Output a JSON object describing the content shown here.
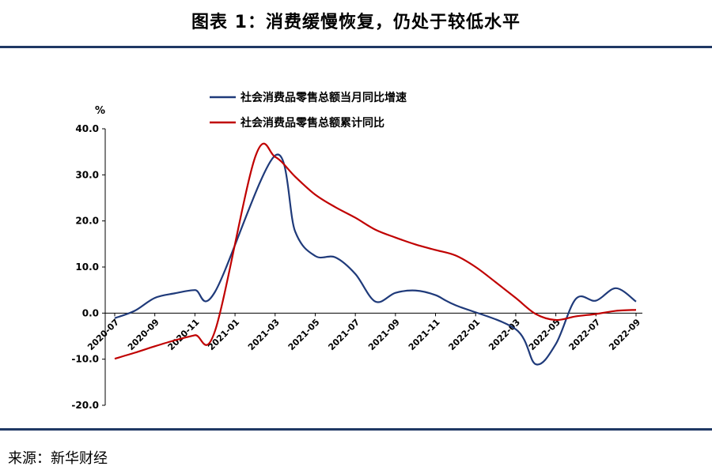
{
  "title": "图表 1：消费缓慢恢复，仍处于较低水平",
  "source": "来源：新华财经",
  "chart_data": {
    "type": "line",
    "unit": "%",
    "ylim": [
      -20,
      40
    ],
    "yticks": [
      -20,
      -10,
      0,
      10,
      20,
      30,
      40
    ],
    "ytick_labels": [
      "-20.0",
      "-10.0",
      "0.0",
      "10.0",
      "20.0",
      "30.0",
      "40.0"
    ],
    "x": [
      "2020-07",
      "2020-08",
      "2020-09",
      "2020-10",
      "2020-11",
      "2020-12",
      "2021-01",
      "2021-02",
      "2021-03",
      "2021-04",
      "2021-05",
      "2021-06",
      "2021-07",
      "2021-08",
      "2021-09",
      "2021-10",
      "2021-11",
      "2021-12",
      "2022-01",
      "2022-02",
      "2022-03",
      "2022-04",
      "2022-05",
      "2022-06",
      "2022-07",
      "2022-08",
      "2022-09"
    ],
    "xtick_labels": [
      "2020-07",
      "2020-09",
      "2020-11",
      "2021-01",
      "2021-03",
      "2021-05",
      "2021-07",
      "2021-09",
      "2021-11",
      "2022-01",
      "2022-03",
      "2022-05",
      "2022-07",
      "2022-09"
    ],
    "legend_position": "top-center",
    "series": [
      {
        "name": "社会消费品零售总额当月同比增速",
        "color": "#1f3a7a",
        "values": [
          -1.1,
          0.5,
          3.3,
          4.3,
          5.0,
          4.6,
          null,
          null,
          34.2,
          17.7,
          12.4,
          12.1,
          8.5,
          2.5,
          4.4,
          4.9,
          3.9,
          1.7,
          null,
          null,
          -3.5,
          -11.1,
          -6.7,
          3.1,
          2.7,
          5.4,
          2.5
        ]
      },
      {
        "name": "社会消费品零售总额累计同比",
        "color": "#c00000",
        "values": [
          -9.9,
          -8.6,
          -7.2,
          -5.9,
          -4.8,
          -3.9,
          null,
          33.8,
          33.9,
          29.6,
          25.7,
          23.0,
          20.7,
          18.1,
          16.4,
          14.9,
          13.7,
          12.5,
          10.0,
          6.7,
          3.3,
          -0.2,
          -1.5,
          -0.7,
          -0.2,
          0.5,
          0.7
        ]
      }
    ],
    "jan_feb_combined_value": 33.8
  }
}
